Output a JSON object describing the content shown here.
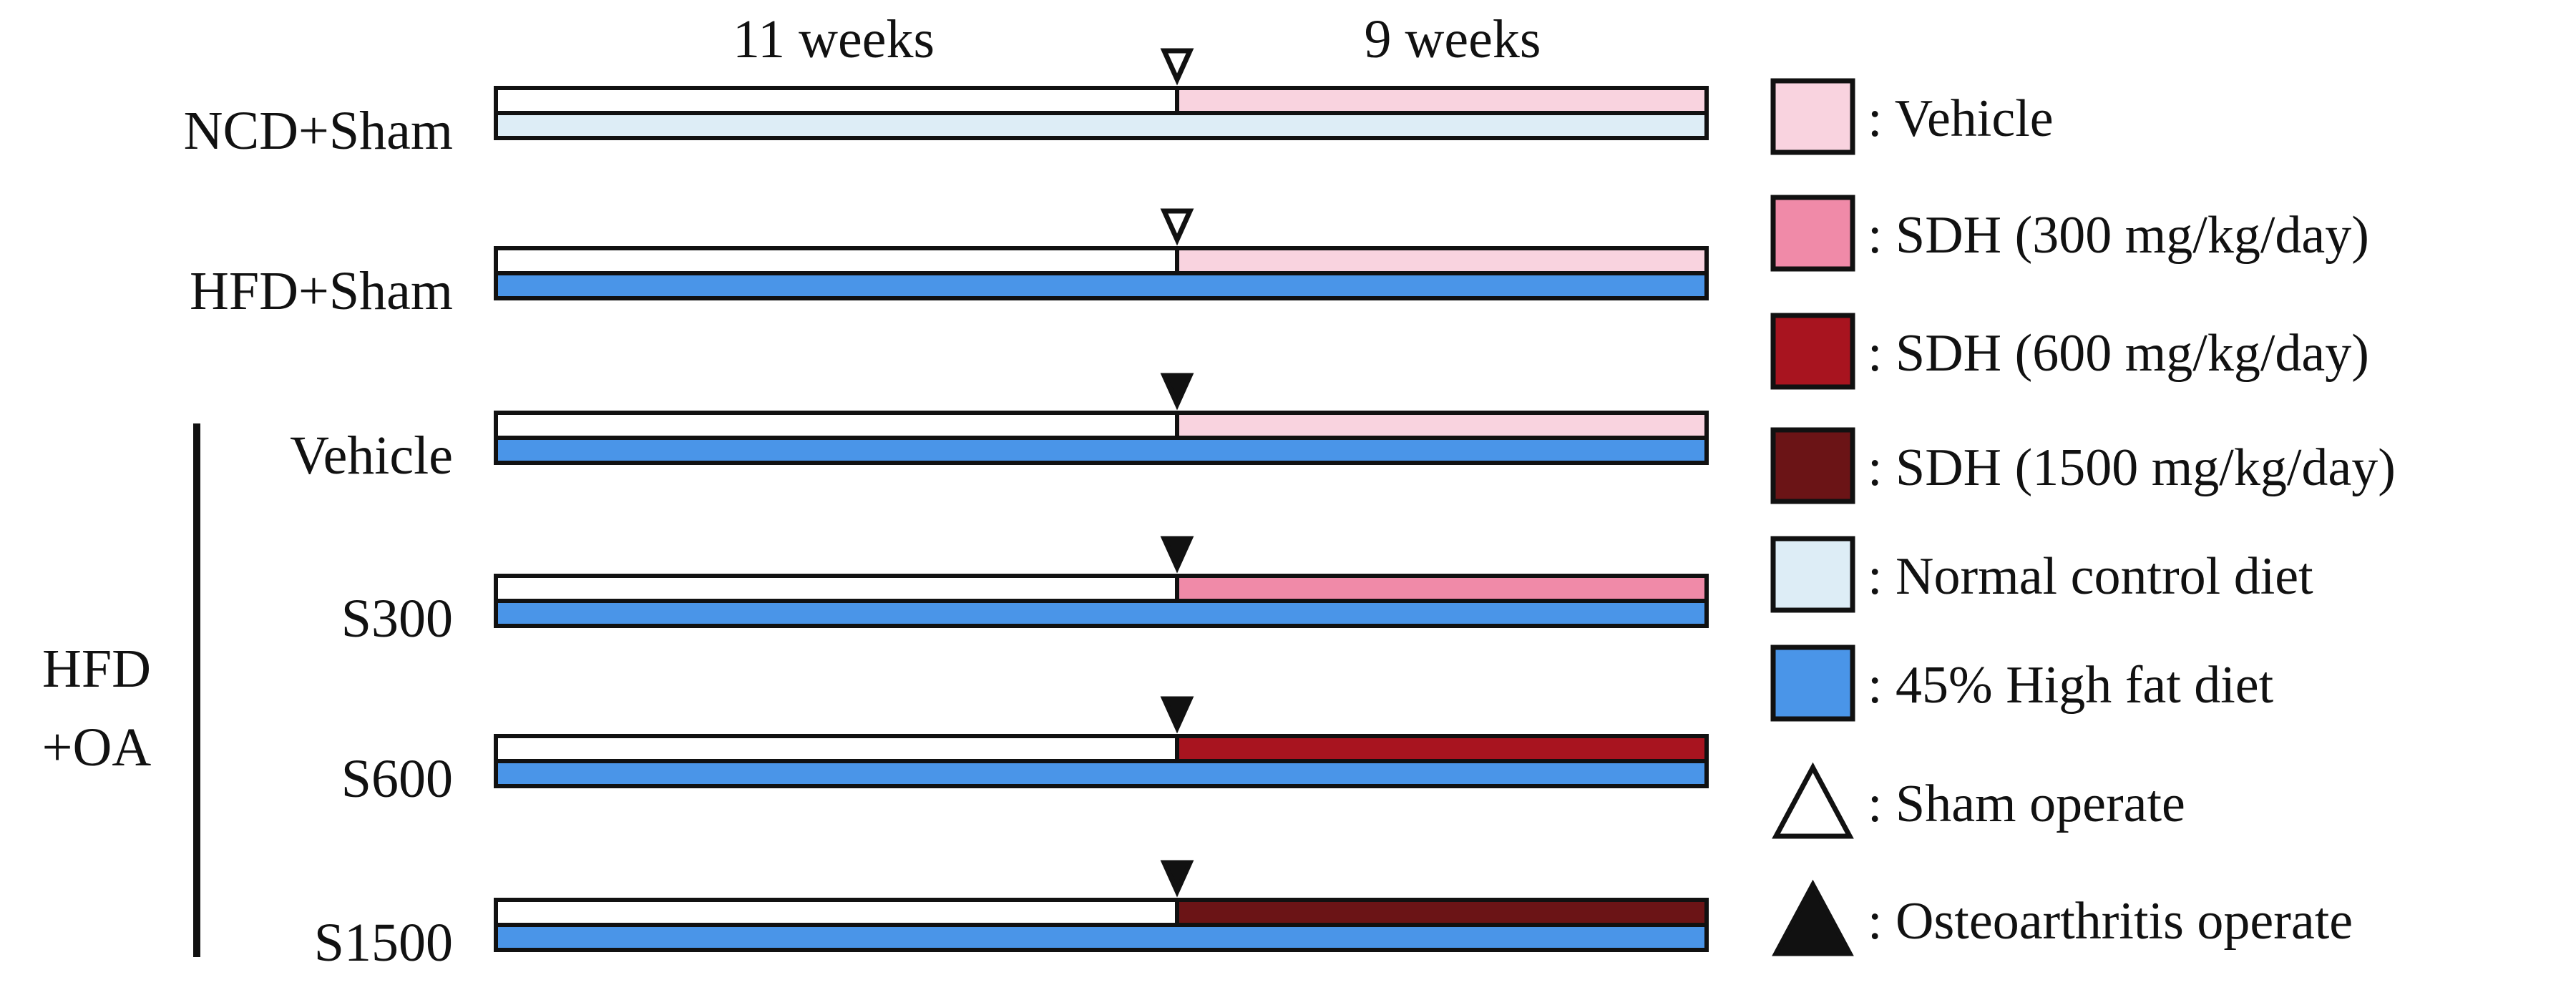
{
  "timeline": {
    "before_label": "11 weeks",
    "after_label": "9 weeks"
  },
  "colors": {
    "vehicle": "#f9d3df",
    "sdh300": "#f08aa8",
    "sdh600": "#a8141f",
    "sdh1500": "#6b1416",
    "normal_diet": "#ddedf6",
    "high_fat_diet": "#4a95e8",
    "white": "#ffffff",
    "stroke": "#111111"
  },
  "groups": [
    {
      "label": "NCD+Sham",
      "operation": "sham",
      "treatment": "vehicle",
      "diet": "normal_diet"
    },
    {
      "label": "HFD+Sham",
      "operation": "sham",
      "treatment": "vehicle",
      "diet": "high_fat_diet"
    },
    {
      "label": "Vehicle",
      "operation": "oa",
      "treatment": "vehicle",
      "diet": "high_fat_diet"
    },
    {
      "label": "S300",
      "operation": "oa",
      "treatment": "sdh300",
      "diet": "high_fat_diet"
    },
    {
      "label": "S600",
      "operation": "oa",
      "treatment": "sdh600",
      "diet": "high_fat_diet"
    },
    {
      "label": "S1500",
      "operation": "oa",
      "treatment": "sdh1500",
      "diet": "high_fat_diet"
    }
  ],
  "bracket": {
    "line1": "HFD",
    "line2": "+OA"
  },
  "legend": [
    {
      "kind": "swatch",
      "color_key": "vehicle",
      "label": ": Vehicle"
    },
    {
      "kind": "swatch",
      "color_key": "sdh300",
      "label": ": SDH (300 mg/kg/day)"
    },
    {
      "kind": "swatch",
      "color_key": "sdh600",
      "label": ": SDH (600 mg/kg/day)"
    },
    {
      "kind": "swatch",
      "color_key": "sdh1500",
      "label": ": SDH (1500 mg/kg/day)"
    },
    {
      "kind": "swatch",
      "color_key": "normal_diet",
      "label": ": Normal control diet"
    },
    {
      "kind": "swatch",
      "color_key": "high_fat_diet",
      "label": ": 45% High fat diet"
    },
    {
      "kind": "open-triangle",
      "label": ": Sham operate"
    },
    {
      "kind": "filled-triangle",
      "label": ": Osteoarthritis operate"
    }
  ]
}
